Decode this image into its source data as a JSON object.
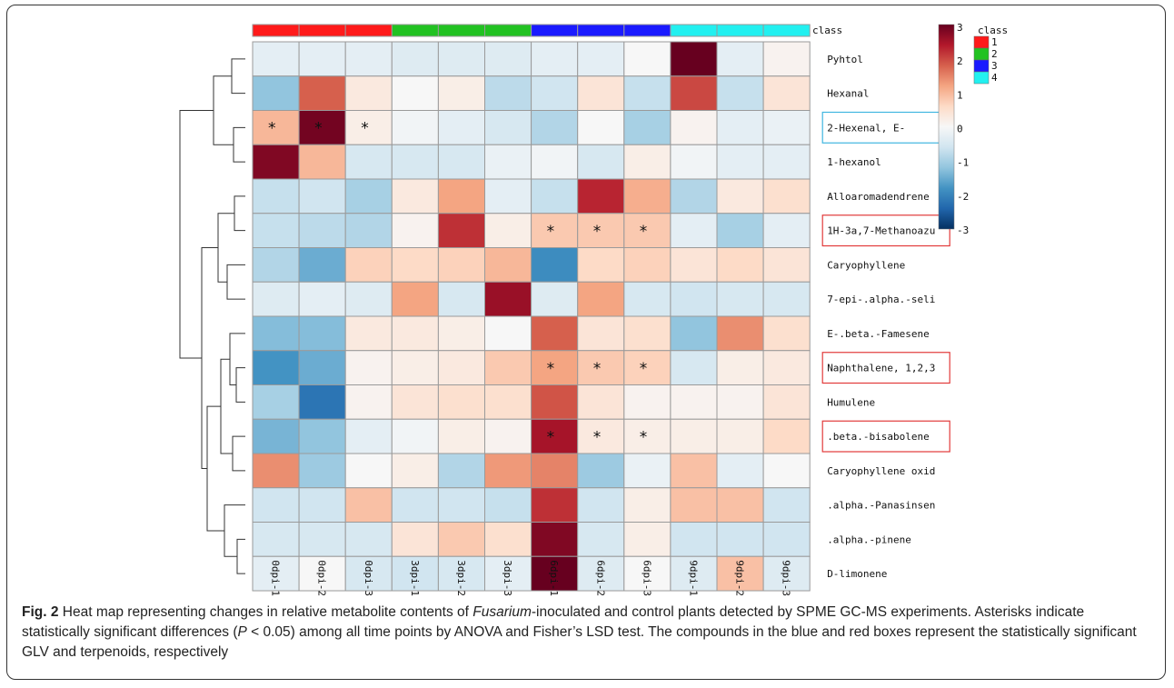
{
  "chart_data": {
    "type": "heatmap",
    "columns": [
      "0dpi-1",
      "0dpi-2",
      "0dpi-3",
      "3dpi-1",
      "3dpi-2",
      "3dpi-3",
      "6dpi-1",
      "6dpi-2",
      "6dpi-3",
      "9dpi-1",
      "9dpi-2",
      "9dpi-3"
    ],
    "column_class": [
      1,
      1,
      1,
      2,
      2,
      2,
      3,
      3,
      3,
      4,
      4,
      4
    ],
    "rows": [
      "Pyhtol",
      "Hexanal",
      "2-Hexenal, E-",
      "1-hexanol",
      "Alloaromadendrene",
      "1H-3a,7-Methanoazu",
      "Caryophyllene",
      "7-epi-.alpha.-seli",
      "E-.beta.-Famesene",
      "Naphthalene, 1,2,3",
      "Humulene",
      ".beta.-bisabolene",
      "Caryophyllene oxid",
      ".alpha.-Panasinsen",
      ".alpha.-pinene",
      "D-limonene"
    ],
    "values": [
      [
        -0.3,
        -0.3,
        -0.3,
        -0.4,
        -0.4,
        -0.4,
        -0.3,
        -0.3,
        0.0,
        3.0,
        -0.3,
        0.1
      ],
      [
        -1.2,
        1.8,
        0.3,
        0.0,
        0.2,
        -0.8,
        -0.6,
        0.4,
        -0.7,
        2.0,
        -0.7,
        0.4
      ],
      [
        1.0,
        2.9,
        0.2,
        -0.1,
        -0.3,
        -0.5,
        -0.9,
        0.0,
        -1.0,
        0.1,
        -0.3,
        -0.2
      ],
      [
        2.8,
        1.0,
        -0.5,
        -0.5,
        -0.5,
        -0.2,
        -0.1,
        -0.5,
        0.2,
        -0.1,
        -0.3,
        -0.3
      ],
      [
        -0.7,
        -0.6,
        -1.0,
        0.3,
        1.2,
        -0.3,
        -0.7,
        2.3,
        1.1,
        -0.9,
        0.3,
        0.5
      ],
      [
        -0.7,
        -0.8,
        -0.9,
        0.1,
        2.2,
        0.2,
        0.8,
        0.8,
        0.8,
        -0.3,
        -1.0,
        -0.3
      ],
      [
        -0.9,
        -1.5,
        0.7,
        0.6,
        0.7,
        1.0,
        -1.9,
        0.6,
        0.7,
        0.4,
        0.6,
        0.4
      ],
      [
        -0.4,
        -0.3,
        -0.4,
        1.2,
        -0.5,
        2.6,
        -0.4,
        1.2,
        -0.5,
        -0.6,
        -0.5,
        -0.5
      ],
      [
        -1.3,
        -1.3,
        0.3,
        0.3,
        0.2,
        0.0,
        1.8,
        0.4,
        0.5,
        -1.2,
        1.4,
        0.5
      ],
      [
        -1.8,
        -1.5,
        0.1,
        0.2,
        0.3,
        0.8,
        1.2,
        0.8,
        0.7,
        -0.5,
        0.2,
        0.3
      ],
      [
        -1.0,
        -2.2,
        0.1,
        0.4,
        0.5,
        0.5,
        1.9,
        0.4,
        0.1,
        0.1,
        0.1,
        0.4
      ],
      [
        -1.4,
        -1.2,
        -0.3,
        -0.1,
        0.2,
        0.1,
        2.5,
        0.3,
        0.2,
        0.2,
        0.2,
        0.6
      ],
      [
        1.4,
        -1.1,
        0.0,
        0.2,
        -0.9,
        1.3,
        1.5,
        -1.1,
        -0.2,
        0.9,
        -0.3,
        0.0
      ],
      [
        -0.6,
        -0.6,
        0.9,
        -0.6,
        -0.6,
        -0.7,
        2.2,
        -0.6,
        0.2,
        0.9,
        0.9,
        -0.6
      ],
      [
        -0.5,
        -0.5,
        -0.5,
        0.4,
        0.8,
        0.5,
        2.8,
        -0.5,
        0.2,
        -0.6,
        -0.6,
        -0.6
      ],
      [
        -0.3,
        0.0,
        -0.5,
        -0.6,
        -0.5,
        -0.3,
        3.0,
        -0.4,
        0.0,
        -0.4,
        0.9,
        -0.4
      ]
    ],
    "significant": [
      [
        2,
        0
      ],
      [
        2,
        1
      ],
      [
        2,
        2
      ],
      [
        5,
        6
      ],
      [
        5,
        7
      ],
      [
        5,
        8
      ],
      [
        9,
        6
      ],
      [
        9,
        7
      ],
      [
        9,
        8
      ],
      [
        11,
        6
      ],
      [
        11,
        7
      ],
      [
        11,
        8
      ]
    ],
    "significance_mark": "*",
    "boxed_rows": [
      {
        "row": 2,
        "color": "#3fb6e0"
      },
      {
        "row": 5,
        "color": "#e23a3a"
      },
      {
        "row": 9,
        "color": "#e23a3a"
      },
      {
        "row": 11,
        "color": "#e23a3a"
      }
    ],
    "class_label": "class",
    "classes": [
      {
        "label": "1",
        "color": "#ff1a1a"
      },
      {
        "label": "2",
        "color": "#22c222"
      },
      {
        "label": "3",
        "color": "#1a1aff"
      },
      {
        "label": "4",
        "color": "#22f0f0"
      }
    ],
    "colorbar": {
      "range": [
        -3,
        3
      ],
      "ticks": [
        "3",
        "2",
        "1",
        "0",
        "-1",
        "-2",
        "-3"
      ],
      "colors": [
        "#053061",
        "#2166ac",
        "#4393c3",
        "#92c5de",
        "#d1e5f0",
        "#f7f7f7",
        "#fddbc7",
        "#f4a582",
        "#d6604d",
        "#b2182b",
        "#67001f"
      ]
    },
    "dendrogram": "row clustering"
  },
  "caption": {
    "label": "Fig. 2",
    "part1": " Heat map representing changes in relative metabolite contents of ",
    "italic1": "Fusarium",
    "part2": "-inoculated and control plants detected by SPME GC-MS experiments. Asterisks indicate statistically significant differences (",
    "italic2": "P",
    "part3": " < 0.05) among all time points by ANOVA and Fisher’s LSD test. The compounds in the blue and red boxes represent the statistically significant GLV and terpenoids, respectively"
  }
}
